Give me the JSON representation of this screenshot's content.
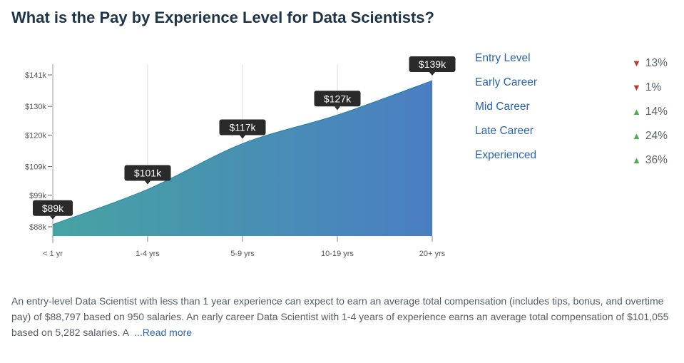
{
  "title": "What is the Pay by Experience Level for Data Scientists?",
  "chart_data": {
    "type": "area",
    "categories": [
      "< 1 yr",
      "1-4 yrs",
      "5-9 yrs",
      "10-19 yrs",
      "20+ yrs"
    ],
    "values": [
      88.797,
      101.055,
      117,
      127,
      139
    ],
    "data_labels": [
      "$89k",
      "$101k",
      "$117k",
      "$127k",
      "$139k"
    ],
    "yticks": [
      88,
      99,
      109,
      120,
      130,
      141
    ],
    "ytick_labels": [
      "$88k",
      "$99k",
      "$109k",
      "$120k",
      "$130k",
      "$141k"
    ],
    "ylim": [
      84.8,
      141
    ],
    "colors": {
      "start": "#47a3a3",
      "end": "#4a7ec2"
    }
  },
  "legend": [
    {
      "label": "Entry Level",
      "direction": "down",
      "pct": "13%"
    },
    {
      "label": "Early Career",
      "direction": "down",
      "pct": "1%"
    },
    {
      "label": "Mid Career",
      "direction": "up",
      "pct": "14%"
    },
    {
      "label": "Late Career",
      "direction": "up",
      "pct": "24%"
    },
    {
      "label": "Experienced",
      "direction": "up",
      "pct": "36%"
    }
  ],
  "arrows": {
    "down": "▼",
    "up": "▲",
    "down_color": "#c0392b",
    "up_color": "#4caf50"
  },
  "description": "An entry-level Data Scientist with less than 1 year experience can expect to earn an average total compensation (includes tips, bonus, and overtime pay) of $88,797 based on 950 salaries. An early career Data Scientist with 1-4 years of experience earns an average total compensation of $101,055 based on 5,282 salaries. A ",
  "read_more": "...Read more"
}
